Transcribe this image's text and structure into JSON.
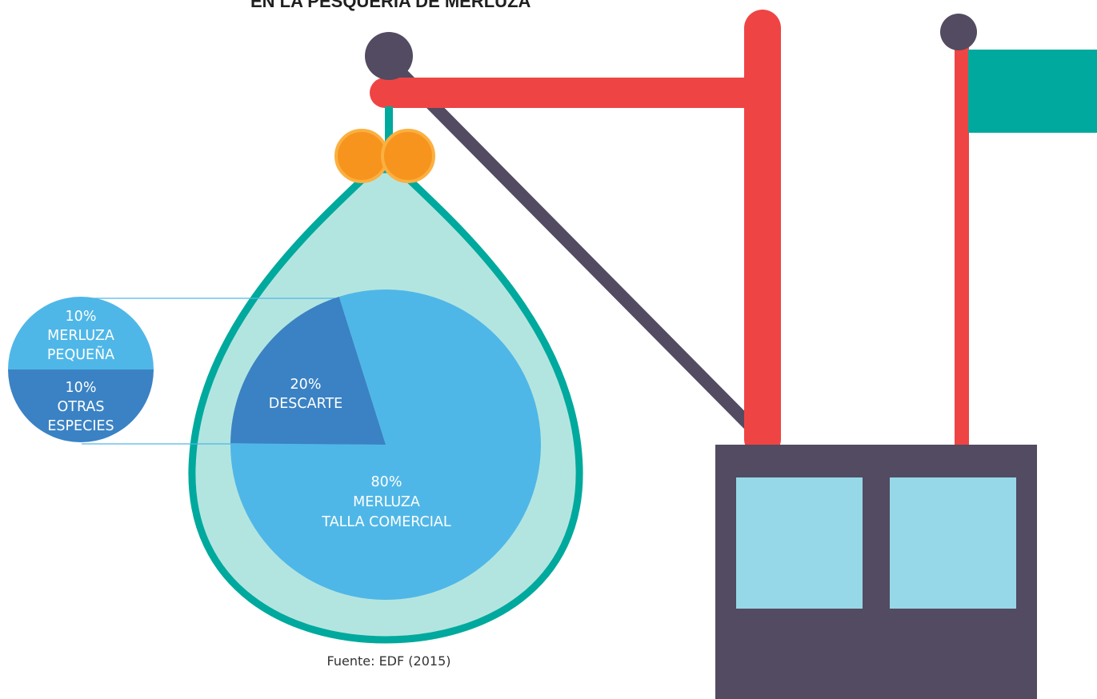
{
  "title": "EN LA PESQUERÍA DE MERLUZA",
  "source": "Fuente: EDF (2015)",
  "colors": {
    "net_fill": "#b3e5e0",
    "net_stroke": "#00a99d",
    "merluza": "#4fb7e7",
    "descarte": "#3a82c4",
    "orange": "#f7941e",
    "orange_stroke": "#fbb040",
    "red": "#ef4444",
    "dark": "#524b61",
    "flag": "#00a99d",
    "window": "#97d8e8"
  },
  "chart_data": [
    {
      "type": "pie",
      "slices": [
        {
          "label": "MERLUZA TALLA COMERCIAL",
          "value": 80,
          "value_label": "80%",
          "color": "#4fb7e7"
        },
        {
          "label": "DESCARTE",
          "value": 20,
          "value_label": "20%",
          "color": "#3a82c4"
        }
      ]
    },
    {
      "type": "pie",
      "slices": [
        {
          "label": "MERLUZA PEQUEÑA",
          "value": 10,
          "value_label": "10%",
          "color": "#4fb7e7"
        },
        {
          "label": "OTRAS ESPECIES",
          "value": 10,
          "value_label": "10%",
          "color": "#3a82c4"
        }
      ]
    }
  ],
  "labels": {
    "main_big_pct": "80%",
    "main_big_1": "MERLUZA",
    "main_big_2": "TALLA COMERCIAL",
    "main_small_pct": "20%",
    "main_small_1": "DESCARTE",
    "side_top_pct": "10%",
    "side_top_1": "MERLUZA",
    "side_top_2": "PEQUEÑA",
    "side_bot_pct": "10%",
    "side_bot_1": "OTRAS",
    "side_bot_2": "ESPECIES"
  }
}
